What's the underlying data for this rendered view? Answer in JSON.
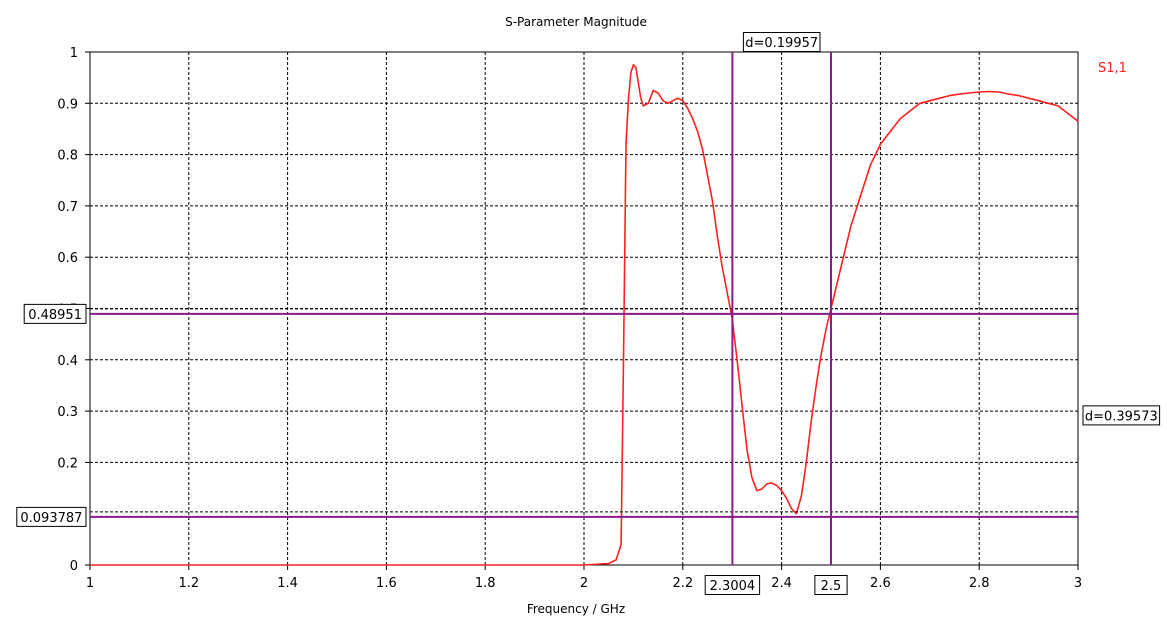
{
  "chart_data": {
    "type": "line",
    "title": "S-Parameter Magnitude",
    "xlabel": "Frequency / GHz",
    "ylabel": "",
    "xlim": [
      1,
      3
    ],
    "ylim": [
      0,
      1
    ],
    "x_ticks": [
      1,
      1.2,
      1.4,
      1.6,
      1.8,
      2,
      2.2,
      2.4,
      2.6,
      2.8,
      3
    ],
    "x_tick_labels": [
      "1",
      "1.2",
      "1.4",
      "1.6",
      "1.8",
      "2",
      "2.2",
      "2.4",
      "2.6",
      "2.8",
      "3"
    ],
    "y_ticks": [
      0,
      0.2,
      0.3,
      0.4,
      0.5,
      0.6,
      0.7,
      0.8,
      0.9,
      1
    ],
    "y_tick_labels": [
      "0",
      "0.2",
      "0.3",
      "0.4",
      "0.5",
      "0.6",
      "0.7",
      "0.8",
      "0.9",
      "1"
    ],
    "grid": true,
    "legend_position": "top-right",
    "series": [
      {
        "name": "S1,1",
        "color": "#ff2020",
        "x": [
          1,
          1.5,
          2,
          2.05,
          2.065,
          2.075,
          2.08,
          2.085,
          2.09,
          2.095,
          2.1,
          2.105,
          2.11,
          2.115,
          2.12,
          2.13,
          2.14,
          2.15,
          2.16,
          2.17,
          2.18,
          2.19,
          2.2,
          2.21,
          2.22,
          2.23,
          2.24,
          2.25,
          2.26,
          2.27,
          2.28,
          2.29,
          2.3,
          2.31,
          2.32,
          2.33,
          2.34,
          2.35,
          2.36,
          2.37,
          2.38,
          2.39,
          2.4,
          2.41,
          2.42,
          2.43,
          2.44,
          2.45,
          2.46,
          2.47,
          2.48,
          2.49,
          2.5,
          2.52,
          2.54,
          2.56,
          2.58,
          2.6,
          2.62,
          2.64,
          2.66,
          2.68,
          2.7,
          2.72,
          2.74,
          2.76,
          2.78,
          2.8,
          2.82,
          2.84,
          2.86,
          2.88,
          2.9,
          2.92,
          2.94,
          2.96,
          2.98,
          3
        ],
        "values": [
          0,
          0,
          0,
          0.003,
          0.01,
          0.04,
          0.4,
          0.82,
          0.91,
          0.96,
          0.975,
          0.97,
          0.94,
          0.91,
          0.895,
          0.9,
          0.925,
          0.92,
          0.905,
          0.9,
          0.905,
          0.91,
          0.905,
          0.89,
          0.87,
          0.845,
          0.81,
          0.76,
          0.71,
          0.64,
          0.58,
          0.53,
          0.48,
          0.4,
          0.31,
          0.225,
          0.17,
          0.145,
          0.148,
          0.158,
          0.16,
          0.155,
          0.145,
          0.13,
          0.11,
          0.1,
          0.135,
          0.2,
          0.28,
          0.35,
          0.41,
          0.46,
          0.5,
          0.58,
          0.66,
          0.72,
          0.78,
          0.82,
          0.845,
          0.87,
          0.885,
          0.9,
          0.905,
          0.91,
          0.915,
          0.918,
          0.92,
          0.922,
          0.923,
          0.922,
          0.918,
          0.915,
          0.91,
          0.905,
          0.9,
          0.895,
          0.88,
          0.865
        ]
      }
    ],
    "markers": {
      "color": "#8b1a8b",
      "vertical": [
        {
          "x": 2.3004,
          "label": "2.3004"
        },
        {
          "x": 2.5,
          "label": "2.5"
        }
      ],
      "horizontal": [
        {
          "y": 0.48951,
          "label": "0.48951"
        },
        {
          "y": 0.093787,
          "label": "0.093787"
        }
      ],
      "dx_label": "d=0.19957",
      "dy_label": "d=0.39573"
    }
  }
}
